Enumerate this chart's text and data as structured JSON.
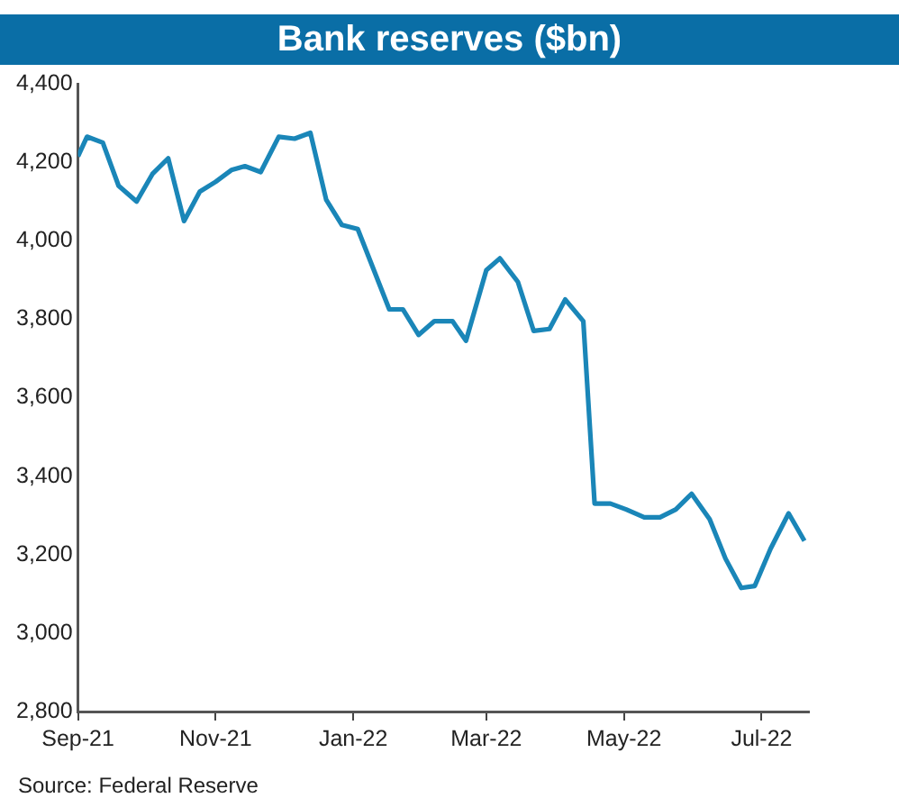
{
  "chart_data": {
    "type": "line",
    "title": "Bank reserves ($bn)",
    "annotations": [
      "Source: Federal Reserve"
    ],
    "x": [
      "2021-09-01",
      "2021-09-05",
      "2021-09-12",
      "2021-09-19",
      "2021-09-27",
      "2021-10-04",
      "2021-10-11",
      "2021-10-18",
      "2021-10-25",
      "2021-11-01",
      "2021-11-08",
      "2021-11-14",
      "2021-11-21",
      "2021-11-29",
      "2021-12-06",
      "2021-12-13",
      "2021-12-20",
      "2021-12-27",
      "2022-01-03",
      "2022-01-17",
      "2022-01-23",
      "2022-01-30",
      "2022-02-06",
      "2022-02-14",
      "2022-02-20",
      "2022-03-01",
      "2022-03-07",
      "2022-03-15",
      "2022-03-22",
      "2022-03-29",
      "2022-04-05",
      "2022-04-13",
      "2022-04-18",
      "2022-04-25",
      "2022-05-02",
      "2022-05-10",
      "2022-05-17",
      "2022-05-24",
      "2022-05-31",
      "2022-06-08",
      "2022-06-15",
      "2022-06-22",
      "2022-06-28",
      "2022-07-05",
      "2022-07-13",
      "2022-07-20"
    ],
    "series": [
      {
        "color": "#1a86b8",
        "values": [
          4215,
          4265,
          4250,
          4140,
          4100,
          4170,
          4210,
          4050,
          4125,
          4150,
          4180,
          4190,
          4175,
          4265,
          4260,
          4275,
          4105,
          4040,
          4030,
          3825,
          3825,
          3760,
          3795,
          3795,
          3745,
          3925,
          3955,
          3895,
          3770,
          3775,
          3850,
          3795,
          3330,
          3330,
          3315,
          3295,
          3295,
          3315,
          3355,
          3290,
          3190,
          3115,
          3120,
          3215,
          3305,
          3235
        ]
      }
    ],
    "xlim": [
      "2021-09-01",
      "2022-07-22"
    ],
    "xticks": [
      {
        "value": "2021-09-01",
        "label": "Sep-21"
      },
      {
        "value": "2021-11-01",
        "label": "Nov-21"
      },
      {
        "value": "2022-01-01",
        "label": "Jan-22"
      },
      {
        "value": "2022-03-01",
        "label": "Mar-22"
      },
      {
        "value": "2022-05-01",
        "label": "May-22"
      },
      {
        "value": "2022-07-01",
        "label": "Jul-22"
      }
    ],
    "ylim": [
      2800,
      4400
    ],
    "yticks": [
      {
        "value": 2800,
        "label": "2,800"
      },
      {
        "value": 3000,
        "label": "3,000"
      },
      {
        "value": 3200,
        "label": "3,200"
      },
      {
        "value": 3400,
        "label": "3,400"
      },
      {
        "value": 3600,
        "label": "3,600"
      },
      {
        "value": 3800,
        "label": "3,800"
      },
      {
        "value": 4000,
        "label": "4,000"
      },
      {
        "value": 4200,
        "label": "4,200"
      },
      {
        "value": 4400,
        "label": "4,400"
      }
    ],
    "grid": false,
    "legend": false,
    "marker": "none",
    "line_style": "solid"
  }
}
